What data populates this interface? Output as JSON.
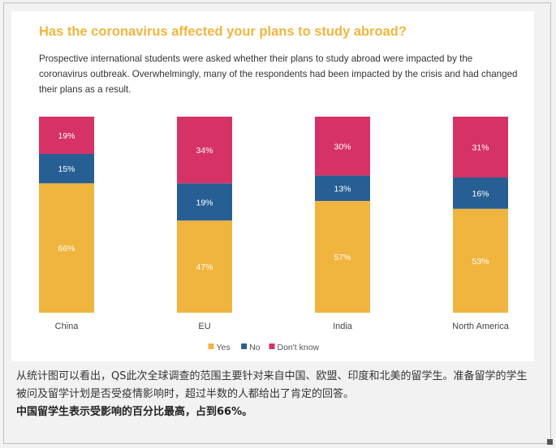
{
  "chart_data": {
    "type": "bar",
    "stacked": true,
    "orientation": "vertical",
    "title": "Has the coronavirus affected your plans to study abroad?",
    "subtitle": "Prospective international students were asked whether their plans to study abroad were impacted by the coronavirus outbreak. Overwhelmingly, many of the respondents had been impacted by the crisis and had changed their plans as a result.",
    "categories": [
      "China",
      "EU",
      "India",
      "North America"
    ],
    "series": [
      {
        "name": "Yes",
        "color": "#f0b53e",
        "values": [
          66,
          47,
          57,
          53
        ]
      },
      {
        "name": "No",
        "color": "#275f94",
        "values": [
          15,
          19,
          13,
          16
        ]
      },
      {
        "name": "Don't know",
        "color": "#d63266",
        "values": [
          19,
          34,
          30,
          31
        ]
      }
    ],
    "value_suffix": "%",
    "ylim": [
      0,
      100
    ],
    "legend_position": "bottom-center"
  },
  "caption": {
    "text": "从统计图可以看出，QS此次全球调查的范围主要针对来自中国、欧盟、印度和北美的留学生。准备留学的学生被问及留学计划是否受疫情影响时，超过半数的人都给出了肯定的回答。",
    "highlight": "中国留学生表示受影响的百分比最高，占到66%。"
  }
}
